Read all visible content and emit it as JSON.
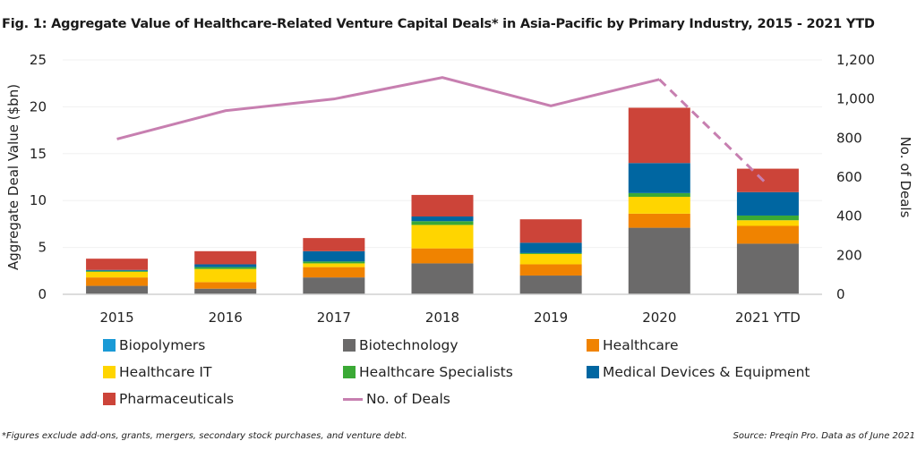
{
  "chart_data": {
    "type": "bar",
    "stacked": true,
    "title": "Fig. 1: Aggregate Value of Healthcare-Related Venture Capital Deals* in Asia-Pacific by Primary Industry, 2015 - 2021 YTD",
    "categories": [
      "2015",
      "2016",
      "2017",
      "2018",
      "2019",
      "2020",
      "2021 YTD"
    ],
    "ylabel": "Aggregate Deal Value ($bn)",
    "ylim": [
      0,
      25
    ],
    "yticks": [
      "0",
      "5",
      "10",
      "15",
      "20",
      "25"
    ],
    "y2label": "No. of Deals",
    "y2lim": [
      0,
      1200
    ],
    "y2ticks": [
      "0",
      "200",
      "400",
      "600",
      "800",
      "1,000",
      "1,200"
    ],
    "grid": true,
    "legend_position": "bottom",
    "series": [
      {
        "name": "Biopolymers",
        "color": "#1a9ad6",
        "values": [
          0,
          0,
          0,
          0,
          0,
          0,
          0
        ]
      },
      {
        "name": "Biotechnology",
        "color": "#6b6a6a",
        "values": [
          0.9,
          0.6,
          1.8,
          3.3,
          2.0,
          7.1,
          5.4
        ]
      },
      {
        "name": "Healthcare",
        "color": "#f08300",
        "values": [
          0.9,
          0.7,
          1.1,
          1.6,
          1.2,
          1.5,
          1.9
        ]
      },
      {
        "name": "Healthcare IT",
        "color": "#ffd500",
        "values": [
          0.6,
          1.4,
          0.4,
          2.5,
          1.1,
          1.8,
          0.6
        ]
      },
      {
        "name": "Healthcare Specialists",
        "color": "#3aa935",
        "values": [
          0.1,
          0.2,
          0.2,
          0.4,
          0.1,
          0.4,
          0.5
        ]
      },
      {
        "name": "Medical Devices & Equipment",
        "color": "#0066a1",
        "values": [
          0.1,
          0.3,
          1.1,
          0.5,
          1.1,
          3.2,
          2.5
        ]
      },
      {
        "name": "Pharmaceuticals",
        "color": "#cc4439",
        "values": [
          1.2,
          1.4,
          1.4,
          2.3,
          2.5,
          5.9,
          2.5
        ]
      }
    ],
    "line": {
      "name": "No. of Deals",
      "color": "#c77fb0",
      "axis": "right",
      "values": [
        795,
        940,
        1000,
        1110,
        965,
        1100,
        560
      ],
      "dashed_last_segment": true
    }
  },
  "footnote": "*Figures exclude add-ons, grants, mergers, secondary stock purchases, and venture debt.",
  "source": "Source: Preqin Pro. Data as of June 2021"
}
